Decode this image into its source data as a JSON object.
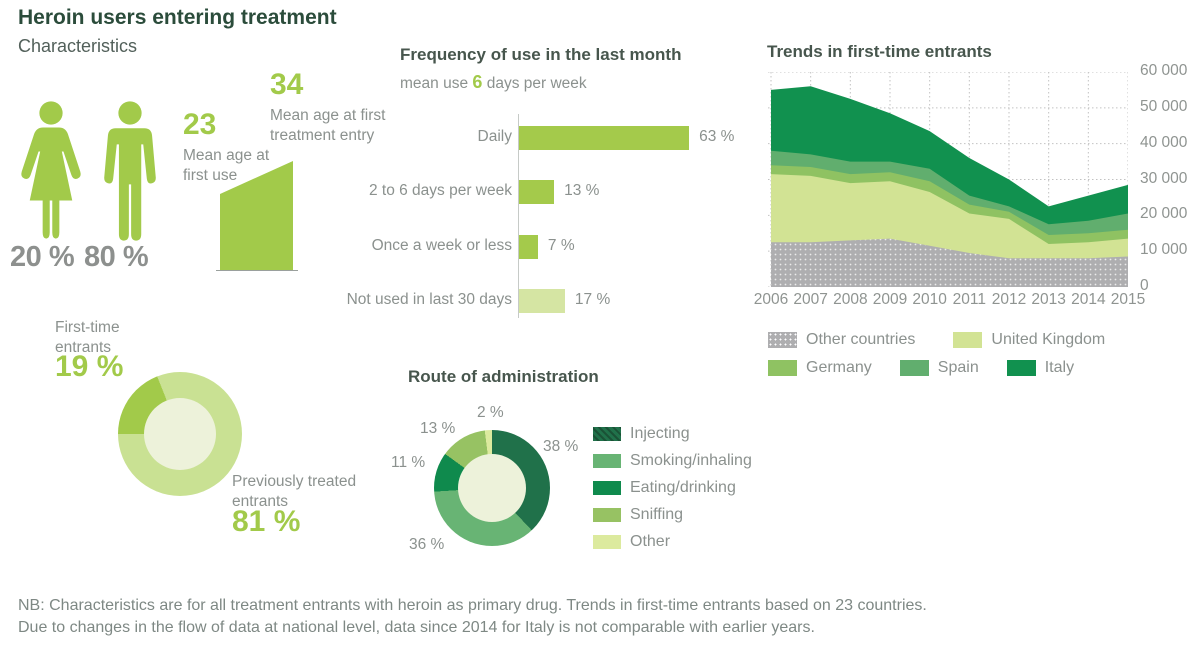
{
  "header": {
    "title": "Heroin users entering treatment",
    "characteristics_heading": "Characteristics"
  },
  "colors": {
    "accent_green": "#a2ca4a",
    "pale_green": "#d5e5a3",
    "ring_light": "#c9e193",
    "donut_hole": "#edf2da",
    "title_green": "#2b4c3b",
    "heading_gray_green": "#47564d",
    "text_gray": "#8b918e",
    "pct_gray": "#8d908e",
    "grid_gray": "#c2c2c2"
  },
  "characteristics": {
    "female_pct": "20 %",
    "male_pct": "80 %",
    "mean_age_first_use": {
      "value": "23",
      "label": "Mean age at\nfirst use"
    },
    "mean_age_first_treatment": {
      "value": "34",
      "label": "Mean age at first\ntreatment entry"
    }
  },
  "chart_data": [
    {
      "id": "frequency",
      "type": "bar",
      "orientation": "horizontal",
      "title": "Frequency of use in the last month",
      "subtitle": "mean use 6 days per week",
      "subtitle_parts": [
        "mean use ",
        "6",
        " days per week"
      ],
      "categories": [
        "Daily",
        "2 to 6 days per week",
        "Once a week or less",
        "Not used in last 30 days"
      ],
      "values": [
        63,
        13,
        7,
        17
      ],
      "unit": "%",
      "value_labels": [
        "63 %",
        "13 %",
        "7 %",
        "17 %"
      ],
      "bar_colors": [
        "#a4ca4b",
        "#a4ca4b",
        "#a4ca4b",
        "#d5e5a3"
      ],
      "xlim": [
        0,
        70
      ]
    },
    {
      "id": "entrants",
      "type": "pie",
      "subtype": "donut",
      "start_angle_deg": 270,
      "slices": [
        {
          "label": "First-time entrants",
          "display_label": "First-time\nentrants",
          "value": 19,
          "display": "19 %",
          "color": "#a2ca4a"
        },
        {
          "label": "Previously treated entrants",
          "display_label": "Previously treated\nentrants",
          "value": 81,
          "display": "81 %",
          "color": "#c9e193"
        }
      ]
    },
    {
      "id": "route",
      "type": "pie",
      "subtype": "donut",
      "title": "Route of administration",
      "start_angle_deg": 0,
      "legend_position": "right",
      "slices": [
        {
          "label": "Injecting",
          "value": 38,
          "display": "38 %",
          "color": "#20714a",
          "hatch": true,
          "hatch_dark": "#1a5236"
        },
        {
          "label": "Smoking/inhaling",
          "value": 36,
          "display": "36 %",
          "color": "#68b474"
        },
        {
          "label": "Eating/drinking",
          "value": 11,
          "display": "11 %",
          "color": "#0f8a4d"
        },
        {
          "label": "Sniffing",
          "value": 13,
          "display": "13 %",
          "color": "#97c263"
        },
        {
          "label": "Other",
          "value": 2,
          "display": "2 %",
          "color": "#dcea9e"
        }
      ]
    },
    {
      "id": "trends",
      "type": "area",
      "stacked": true,
      "title": "Trends in first-time entrants",
      "x": [
        2006,
        2007,
        2008,
        2009,
        2010,
        2011,
        2012,
        2013,
        2014,
        2015
      ],
      "series": [
        {
          "name": "Other countries",
          "color": "#aeaeb0",
          "dotted": true,
          "values": [
            12500,
            12500,
            13000,
            13500,
            11500,
            9500,
            8000,
            8000,
            8000,
            8500
          ]
        },
        {
          "name": "United Kingdom",
          "color": "#d2e394",
          "values": [
            19000,
            18500,
            16000,
            16000,
            15000,
            11000,
            11000,
            4000,
            4500,
            5000
          ]
        },
        {
          "name": "Germany",
          "color": "#8fc262",
          "values": [
            2500,
            2500,
            2500,
            2500,
            3000,
            2500,
            2000,
            2500,
            2500,
            2500
          ]
        },
        {
          "name": "Spain",
          "color": "#61ae6e",
          "values": [
            4000,
            3500,
            3500,
            3000,
            3500,
            2500,
            1500,
            3000,
            3500,
            4500
          ]
        },
        {
          "name": "Italy",
          "color": "#11914f",
          "values": [
            17000,
            19000,
            17500,
            13500,
            10500,
            10500,
            7500,
            5000,
            7000,
            8000
          ]
        }
      ],
      "ylim": [
        0,
        60000
      ],
      "ytick_labels": [
        "0",
        "10 000",
        "20 000",
        "30 000",
        "40 000",
        "50 000",
        "60 000"
      ],
      "grid": true,
      "legend_position": "bottom",
      "legend_rows": [
        [
          "Other countries",
          "United Kingdom"
        ],
        [
          "Germany",
          "Spain",
          "Italy"
        ]
      ]
    }
  ],
  "notes": {
    "line1": "NB: Characteristics are for all treatment entrants with heroin as primary drug. Trends in first-time entrants based on 23 countries.",
    "line2": "Due to changes in the flow of data at national level, data since 2014 for Italy is not comparable with earlier years."
  }
}
